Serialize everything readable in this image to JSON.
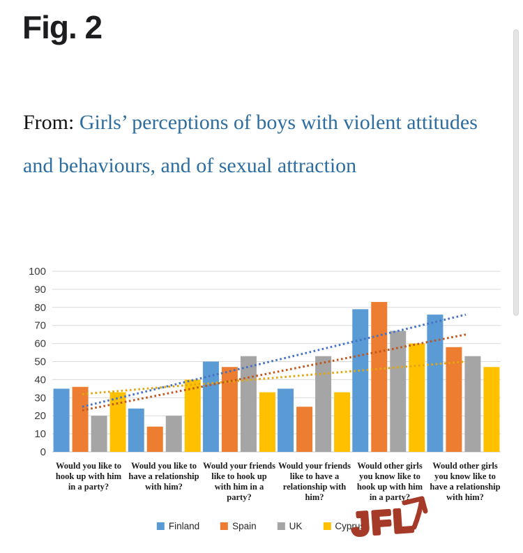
{
  "figure": {
    "label": "Fig. 2"
  },
  "title": {
    "prefix": "From: ",
    "link_text": "Girls’ perceptions of boys with violent attitudes and behaviours, and of sexual attraction",
    "link_color": "#2e6d9f"
  },
  "annotation": {
    "text": "JFL",
    "color": "#a63a28",
    "icon": "arrow-up-icon"
  },
  "chart_data": {
    "type": "bar",
    "title": "",
    "xlabel": "",
    "ylabel": "",
    "ylim": [
      0,
      100
    ],
    "ytick_step": 10,
    "grid": true,
    "grid_color": "#d9d9d9",
    "axis_color": "#c6c6c6",
    "legend_position": "bottom",
    "categories": [
      "Would you like to hook up with him in a party?",
      "Would you like to have a relationship with him?",
      "Would your friends like to hook up with him in a party?",
      "Would your friends like to have a relationship with him?",
      "Would other girls you know like to hook up with him in a party?",
      "Would other girls you know like to have a relationship with him?"
    ],
    "series": [
      {
        "name": "Finland",
        "color": "#5B9BD5",
        "values": [
          35,
          24,
          50,
          35,
          79,
          76
        ]
      },
      {
        "name": "Spain",
        "color": "#ED7D31",
        "values": [
          36,
          14,
          47,
          25,
          83,
          58
        ]
      },
      {
        "name": "UK",
        "color": "#A5A5A5",
        "values": [
          20,
          20,
          53,
          53,
          67,
          53
        ]
      },
      {
        "name": "Cyprus",
        "color": "#FFC000",
        "values": [
          33,
          40,
          33,
          33,
          60,
          47
        ]
      }
    ],
    "trendlines": [
      {
        "series": "Finland",
        "style": "dotted",
        "color": "#4472C4",
        "start_value": 25,
        "end_value": 76
      },
      {
        "series": "Spain",
        "style": "dotted",
        "color": "#C0561B",
        "start_value": 23,
        "end_value": 65
      },
      {
        "series": "Cyprus",
        "style": "dotted",
        "color": "#E2A70F",
        "start_value": 32,
        "end_value": 50
      }
    ]
  }
}
